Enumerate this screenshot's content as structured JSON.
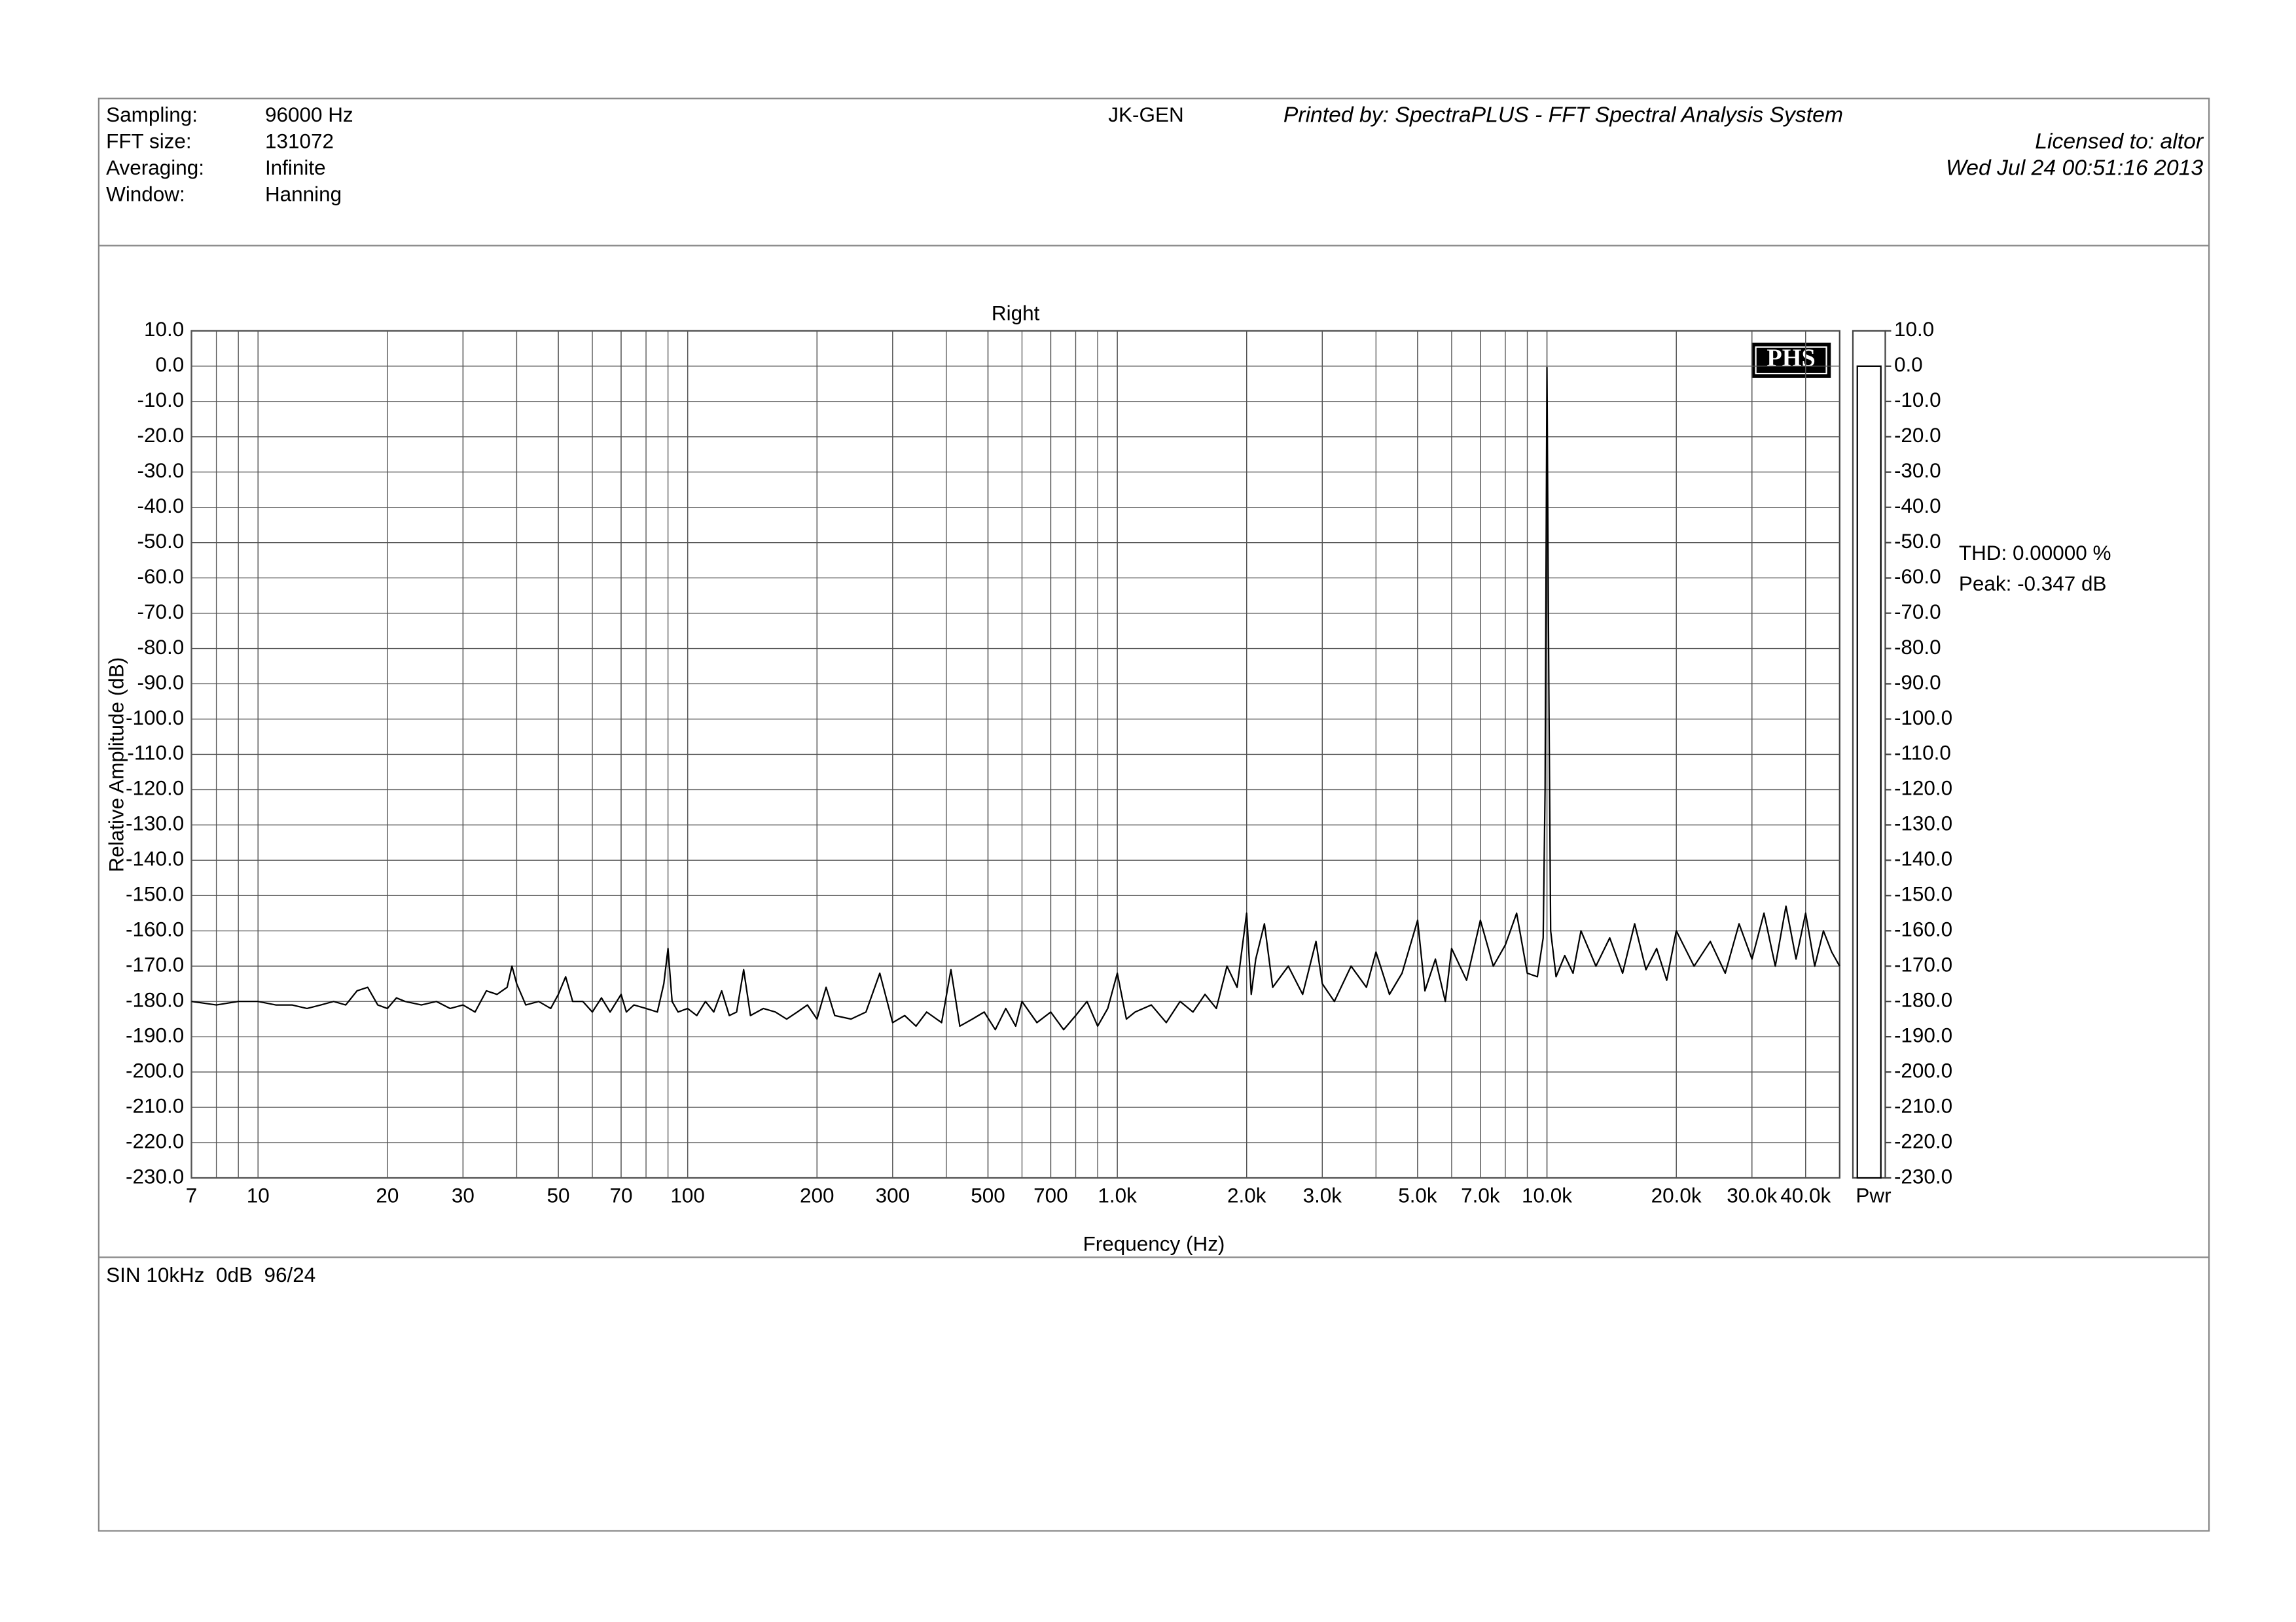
{
  "header": {
    "fields": [
      {
        "label": "Sampling:",
        "value": "96000 Hz"
      },
      {
        "label": "FFT size:",
        "value": "131072"
      },
      {
        "label": "Averaging:",
        "value": "Infinite"
      },
      {
        "label": "Window:",
        "value": "Hanning"
      }
    ],
    "generator": "JK-GEN",
    "printed_by": "Printed by: SpectraPLUS - FFT Spectral Analysis System",
    "licensed": "Licensed to: altor",
    "date": "Wed Jul 24 00:51:16 2013"
  },
  "logo": "PHS",
  "footer": {
    "note": "SIN 10kHz  0dB  96/24"
  },
  "chart_data": {
    "type": "line",
    "title": "Right",
    "x_label": "Frequency (Hz)",
    "y_label": "Relative Amplitude (dB)",
    "log_x": true,
    "grid": true,
    "color": "#000000",
    "xlim": [
      7,
      48000
    ],
    "xticks": [
      7,
      10,
      20,
      30,
      50,
      70,
      100,
      200,
      300,
      500,
      700,
      {
        "value": 1000,
        "label": "1.0k"
      },
      {
        "value": 2000,
        "label": "2.0k"
      },
      {
        "value": 3000,
        "label": "3.0k"
      },
      {
        "value": 5000,
        "label": "5.0k"
      },
      {
        "value": 7000,
        "label": "7.0k"
      },
      {
        "value": 10000,
        "label": "10.0k"
      },
      {
        "value": 20000,
        "label": "20.0k"
      },
      {
        "value": 30000,
        "label": "30.0k"
      },
      {
        "value": 40000,
        "label": "40.0k"
      }
    ],
    "ylim": [
      -230,
      10
    ],
    "yticks": [
      {
        "value": 10,
        "label": "10.0"
      },
      {
        "value": 0,
        "label": "0.0"
      },
      {
        "value": -10,
        "label": "-10.0"
      },
      {
        "value": -20,
        "label": "-20.0"
      },
      {
        "value": -30,
        "label": "-30.0"
      },
      {
        "value": -40,
        "label": "-40.0"
      },
      {
        "value": -50,
        "label": "-50.0"
      },
      {
        "value": -60,
        "label": "-60.0"
      },
      {
        "value": -70,
        "label": "-70.0"
      },
      {
        "value": -80,
        "label": "-80.0"
      },
      {
        "value": -90,
        "label": "-90.0"
      },
      {
        "value": -100,
        "label": "-100.0"
      },
      {
        "value": -110,
        "label": "-110.0"
      },
      {
        "value": -120,
        "label": "-120.0"
      },
      {
        "value": -130,
        "label": "-130.0"
      },
      {
        "value": -140,
        "label": "-140.0"
      },
      {
        "value": -150,
        "label": "-150.0"
      },
      {
        "value": -160,
        "label": "-160.0"
      },
      {
        "value": -170,
        "label": "-170.0"
      },
      {
        "value": -180,
        "label": "-180.0"
      },
      {
        "value": -190,
        "label": "-190.0"
      },
      {
        "value": -200,
        "label": "-200.0"
      },
      {
        "value": -210,
        "label": "-210.0"
      },
      {
        "value": -220,
        "label": "-220.0"
      },
      {
        "value": -230,
        "label": "-230.0"
      }
    ],
    "x": [
      7,
      8,
      9,
      10,
      11,
      12,
      13,
      14,
      15,
      16,
      17,
      18,
      19,
      20,
      21,
      22,
      24,
      26,
      28,
      30,
      32,
      34,
      36,
      38,
      39,
      40,
      42,
      45,
      48,
      50,
      52,
      54,
      57,
      60,
      63,
      66,
      70,
      72,
      75,
      80,
      85,
      88,
      90,
      92,
      95,
      100,
      105,
      110,
      115,
      120,
      125,
      130,
      135,
      140,
      150,
      160,
      170,
      180,
      190,
      200,
      210,
      220,
      240,
      260,
      280,
      300,
      320,
      340,
      360,
      390,
      410,
      430,
      460,
      490,
      520,
      550,
      580,
      600,
      650,
      700,
      750,
      800,
      850,
      900,
      950,
      1000,
      1050,
      1100,
      1200,
      1300,
      1400,
      1500,
      1600,
      1700,
      1800,
      1900,
      2000,
      2050,
      2100,
      2200,
      2300,
      2500,
      2700,
      2900,
      3000,
      3200,
      3500,
      3800,
      4000,
      4300,
      4600,
      5000,
      5200,
      5500,
      5800,
      6000,
      6500,
      7000,
      7500,
      8000,
      8500,
      9000,
      9500,
      9800,
      9900,
      10000,
      10100,
      10200,
      10500,
      11000,
      11500,
      12000,
      13000,
      14000,
      15000,
      16000,
      17000,
      18000,
      19000,
      20000,
      22000,
      24000,
      26000,
      28000,
      30000,
      32000,
      34000,
      36000,
      38000,
      40000,
      42000,
      44000,
      46000,
      48000
    ],
    "values": [
      -180,
      -181,
      -180,
      -180,
      -181,
      -181,
      -182,
      -181,
      -180,
      -181,
      -177,
      -176,
      -181,
      -182,
      -179,
      -180,
      -181,
      -180,
      -182,
      -181,
      -183,
      -177,
      -178,
      -176,
      -170,
      -175,
      -181,
      -180,
      -182,
      -178,
      -173,
      -180,
      -180,
      -183,
      -179,
      -183,
      -178,
      -183,
      -181,
      -182,
      -183,
      -175,
      -165,
      -180,
      -183,
      -182,
      -184,
      -180,
      -183,
      -177,
      -184,
      -183,
      -171,
      -184,
      -182,
      -183,
      -185,
      -183,
      -181,
      -185,
      -176,
      -184,
      -185,
      -183,
      -172,
      -186,
      -184,
      -187,
      -183,
      -186,
      -171,
      -187,
      -185,
      -183,
      -188,
      -182,
      -187,
      -180,
      -186,
      -183,
      -188,
      -184,
      -180,
      -187,
      -182,
      -172,
      -185,
      -183,
      -181,
      -186,
      -180,
      -183,
      -178,
      -182,
      -170,
      -176,
      -155,
      -178,
      -168,
      -158,
      -176,
      -170,
      -178,
      -163,
      -175,
      -180,
      -170,
      -176,
      -166,
      -178,
      -172,
      -157,
      -177,
      -168,
      -180,
      -165,
      -174,
      -157,
      -170,
      -164,
      -155,
      -172,
      -173,
      -162,
      -120,
      -0.347,
      -90,
      -160,
      -173,
      -167,
      -172,
      -160,
      -170,
      -162,
      -172,
      -158,
      -171,
      -165,
      -174,
      -160,
      -170,
      -163,
      -172,
      -158,
      -168,
      -155,
      -170,
      -153,
      -168,
      -155,
      -170,
      -160,
      -166,
      -170
    ],
    "power": {
      "label": "Pwr",
      "value": 0
    },
    "y2lim": [
      -230,
      10
    ],
    "y2ticks": [
      {
        "value": 10,
        "label": "10.0"
      },
      {
        "value": 0,
        "label": "0.0"
      },
      {
        "value": -10,
        "label": "-10.0"
      },
      {
        "value": -20,
        "label": "-20.0"
      },
      {
        "value": -30,
        "label": "-30.0"
      },
      {
        "value": -40,
        "label": "-40.0"
      },
      {
        "value": -50,
        "label": "-50.0"
      },
      {
        "value": -60,
        "label": "-60.0"
      },
      {
        "value": -70,
        "label": "-70.0"
      },
      {
        "value": -80,
        "label": "-80.0"
      },
      {
        "value": -90,
        "label": "-90.0"
      },
      {
        "value": -100,
        "label": "-100.0"
      },
      {
        "value": -110,
        "label": "-110.0"
      },
      {
        "value": -120,
        "label": "-120.0"
      },
      {
        "value": -130,
        "label": "-130.0"
      },
      {
        "value": -140,
        "label": "-140.0"
      },
      {
        "value": -150,
        "label": "-150.0"
      },
      {
        "value": -160,
        "label": "-160.0"
      },
      {
        "value": -170,
        "label": "-170.0"
      },
      {
        "value": -180,
        "label": "-180.0"
      },
      {
        "value": -190,
        "label": "-190.0"
      },
      {
        "value": -200,
        "label": "-200.0"
      },
      {
        "value": -210,
        "label": "-210.0"
      },
      {
        "value": -220,
        "label": "-220.0"
      },
      {
        "value": -230,
        "label": "-230.0"
      }
    ],
    "annotations": [
      "THD: 0.00000 %",
      "Peak: -0.347 dB"
    ]
  }
}
